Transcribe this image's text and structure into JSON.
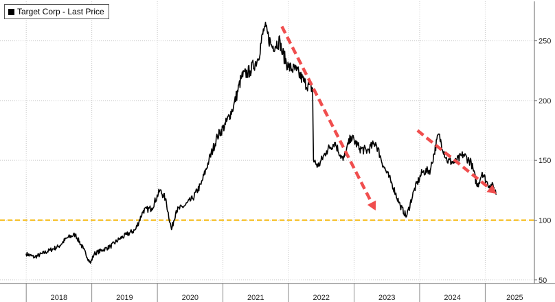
{
  "chart_data": {
    "type": "line",
    "legend": {
      "label": "Target Corp - Last Price",
      "placement": "top-left"
    },
    "series": [
      {
        "name": "Target Corp - Last Price",
        "color": "#000000",
        "x": [
          "2017-12-31",
          "2018-02-15",
          "2018-04-01",
          "2018-05-15",
          "2018-07-01",
          "2018-08-15",
          "2018-10-01",
          "2018-11-15",
          "2018-12-24",
          "2019-01-15",
          "2019-03-01",
          "2019-04-15",
          "2019-06-01",
          "2019-07-15",
          "2019-09-01",
          "2019-10-15",
          "2019-12-01",
          "2020-01-15",
          "2020-02-15",
          "2020-03-20",
          "2020-04-15",
          "2020-06-01",
          "2020-07-15",
          "2020-09-01",
          "2020-10-15",
          "2020-12-01",
          "2021-01-15",
          "2021-03-01",
          "2021-04-15",
          "2021-06-01",
          "2021-07-15",
          "2021-08-20",
          "2021-10-01",
          "2021-11-15",
          "2021-11-23",
          "2022-01-01",
          "2022-02-15",
          "2022-04-01",
          "2022-05-15",
          "2022-05-20",
          "2022-06-15",
          "2022-08-01",
          "2022-09-15",
          "2022-11-01",
          "2022-12-15",
          "2023-02-01",
          "2023-03-15",
          "2023-05-01",
          "2023-06-15",
          "2023-08-01",
          "2023-09-15",
          "2023-10-20",
          "2023-12-01",
          "2024-01-15",
          "2024-03-01",
          "2024-04-15",
          "2024-06-01",
          "2024-07-15",
          "2024-09-01",
          "2024-10-15",
          "2024-11-18",
          "2024-12-15",
          "2025-01-15",
          "2025-02-15",
          "2025-03-05"
        ],
        "y": [
          72,
          69,
          72,
          75,
          78,
          85,
          88,
          76,
          64,
          72,
          75,
          78,
          84,
          88,
          92,
          108,
          110,
          125,
          118,
          92,
          108,
          112,
          118,
          130,
          150,
          170,
          180,
          195,
          220,
          225,
          235,
          262,
          245,
          250,
          242,
          228,
          225,
          215,
          210,
          150,
          145,
          158,
          165,
          150,
          170,
          160,
          158,
          165,
          145,
          130,
          112,
          103,
          125,
          140,
          142,
          172,
          150,
          148,
          155,
          148,
          128,
          140,
          130,
          128,
          122
        ]
      }
    ],
    "x_ticks": [
      "2018",
      "2019",
      "2020",
      "2021",
      "2022",
      "2023",
      "2024",
      "2025"
    ],
    "y_ticks": [
      50,
      100,
      150,
      200,
      250
    ],
    "ylim": [
      47,
      283
    ],
    "y_axis_position": "right",
    "grid": true,
    "reference_line": {
      "y": 100,
      "color": "#f5b400"
    },
    "annotations": [
      {
        "type": "dashed-arrow",
        "color": "#f04e4e",
        "from": {
          "x": "2021-11-25",
          "y": 262
        },
        "to": {
          "x": "2023-05-01",
          "y": 108
        }
      },
      {
        "type": "dashed-arrow",
        "color": "#f04e4e",
        "from": {
          "x": "2023-12-20",
          "y": 175
        },
        "to": {
          "x": "2025-03-05",
          "y": 122
        }
      }
    ]
  }
}
